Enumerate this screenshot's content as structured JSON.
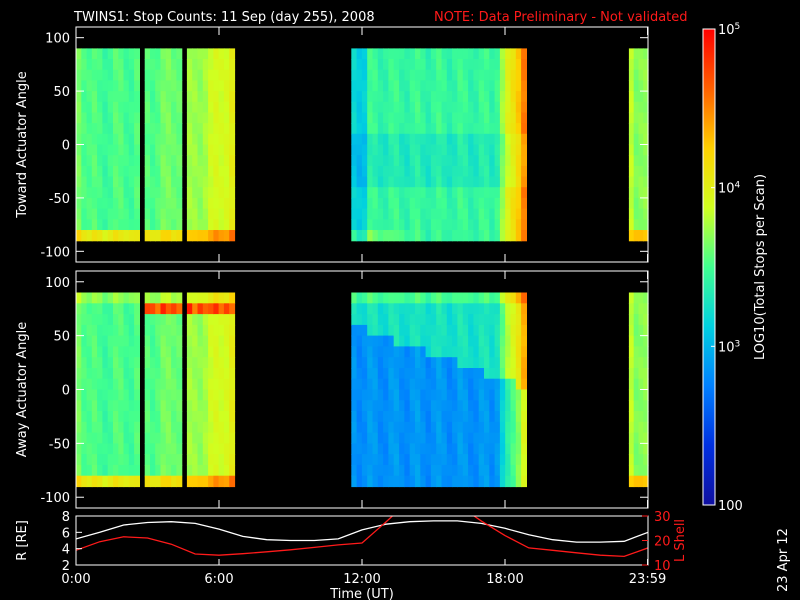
{
  "header": {
    "title": "TWINS1: Stop Counts: 11 Sep (day 255), 2008",
    "note": "NOTE: Data Preliminary - Not validated"
  },
  "footer": {
    "date_stamp": "23 Apr 12"
  },
  "chart_data": [
    {
      "type": "heatmap",
      "title": "TWINS1: Stop Counts: 11 Sep (day 255), 2008",
      "ylabel": "Toward Actuator Angle",
      "xlim": [
        0,
        24
      ],
      "ylim": [
        -110,
        110
      ],
      "y_ticks": [
        "-100",
        "-50",
        "0",
        "50",
        "100"
      ],
      "data_range_deg": [
        -90,
        90
      ],
      "data_intervals_hr": [
        [
          0.0,
          6.65
        ],
        [
          11.55,
          18.9
        ],
        [
          23.2,
          24.0
        ]
      ],
      "gaps_hr": [
        [
          2.62,
          2.82
        ],
        [
          4.42,
          4.72
        ]
      ],
      "profile": "toward"
    },
    {
      "type": "heatmap",
      "ylabel": "Away Actuator Angle",
      "xlim": [
        0,
        24
      ],
      "ylim": [
        -110,
        110
      ],
      "y_ticks": [
        "-100",
        "-50",
        "0",
        "50",
        "100"
      ],
      "data_range_deg": [
        -90,
        90
      ],
      "data_intervals_hr": [
        [
          0.0,
          6.65
        ],
        [
          11.55,
          18.9
        ],
        [
          23.2,
          24.0
        ]
      ],
      "gaps_hr": [
        [
          2.62,
          2.82
        ],
        [
          4.42,
          4.72
        ]
      ],
      "profile": "away"
    },
    {
      "type": "line",
      "ylabel": "R [RE]",
      "y2label": "L Shell",
      "xlabel": "Time (UT)",
      "x_ticks": [
        "0:00",
        "6:00",
        "12:00",
        "18:00",
        "23:59"
      ],
      "x_tick_hours": [
        0,
        6,
        12,
        18,
        23.98
      ],
      "ylim": [
        2,
        8
      ],
      "y_ticks": [
        "2",
        "4",
        "6",
        "8"
      ],
      "y2lim": [
        10,
        30
      ],
      "y2_ticks": [
        "10",
        "20",
        "30"
      ],
      "series": [
        {
          "color": "#ffffff",
          "axis": "left",
          "x": [
            0,
            1,
            2,
            3,
            4,
            5,
            6,
            7,
            8,
            9,
            10,
            11,
            12,
            13,
            14,
            15,
            16,
            17,
            18,
            19,
            20,
            21,
            22,
            23,
            24
          ],
          "y": [
            5.2,
            6.0,
            6.9,
            7.2,
            7.3,
            7.1,
            6.4,
            5.5,
            5.1,
            5.0,
            5.0,
            5.2,
            6.3,
            7.0,
            7.3,
            7.4,
            7.4,
            7.1,
            6.5,
            5.7,
            5.1,
            4.8,
            4.8,
            4.9,
            6.0
          ]
        },
        {
          "color": "#ff1a1a",
          "axis": "right",
          "x": [
            0,
            1,
            2,
            3,
            4,
            5,
            6,
            7,
            8,
            9,
            10,
            11,
            12,
            13,
            13.5,
            16.4,
            17,
            18,
            19,
            20,
            21,
            22,
            23,
            24
          ],
          "y": [
            16.0,
            19.5,
            21.5,
            21.0,
            18.5,
            14.5,
            14.0,
            14.6,
            15.4,
            16.2,
            17.2,
            18.2,
            19.0,
            27.5,
            32,
            32,
            28.0,
            22.0,
            17.0,
            16.0,
            15.0,
            14.0,
            13.5,
            17.0
          ]
        }
      ]
    }
  ],
  "colorbar": {
    "label": "LOG10(Total Stops per Scan)",
    "tick_labels": [
      "100",
      "10^3",
      "10^4",
      "10^5"
    ],
    "tick_values": [
      100,
      1000,
      10000,
      100000
    ],
    "min": 100,
    "max": 100000,
    "colors": [
      "#1010a0",
      "#0030e0",
      "#0080ff",
      "#00d0e0",
      "#40ff90",
      "#d0ff20",
      "#ffd000",
      "#ff6000",
      "#ff0000"
    ]
  }
}
